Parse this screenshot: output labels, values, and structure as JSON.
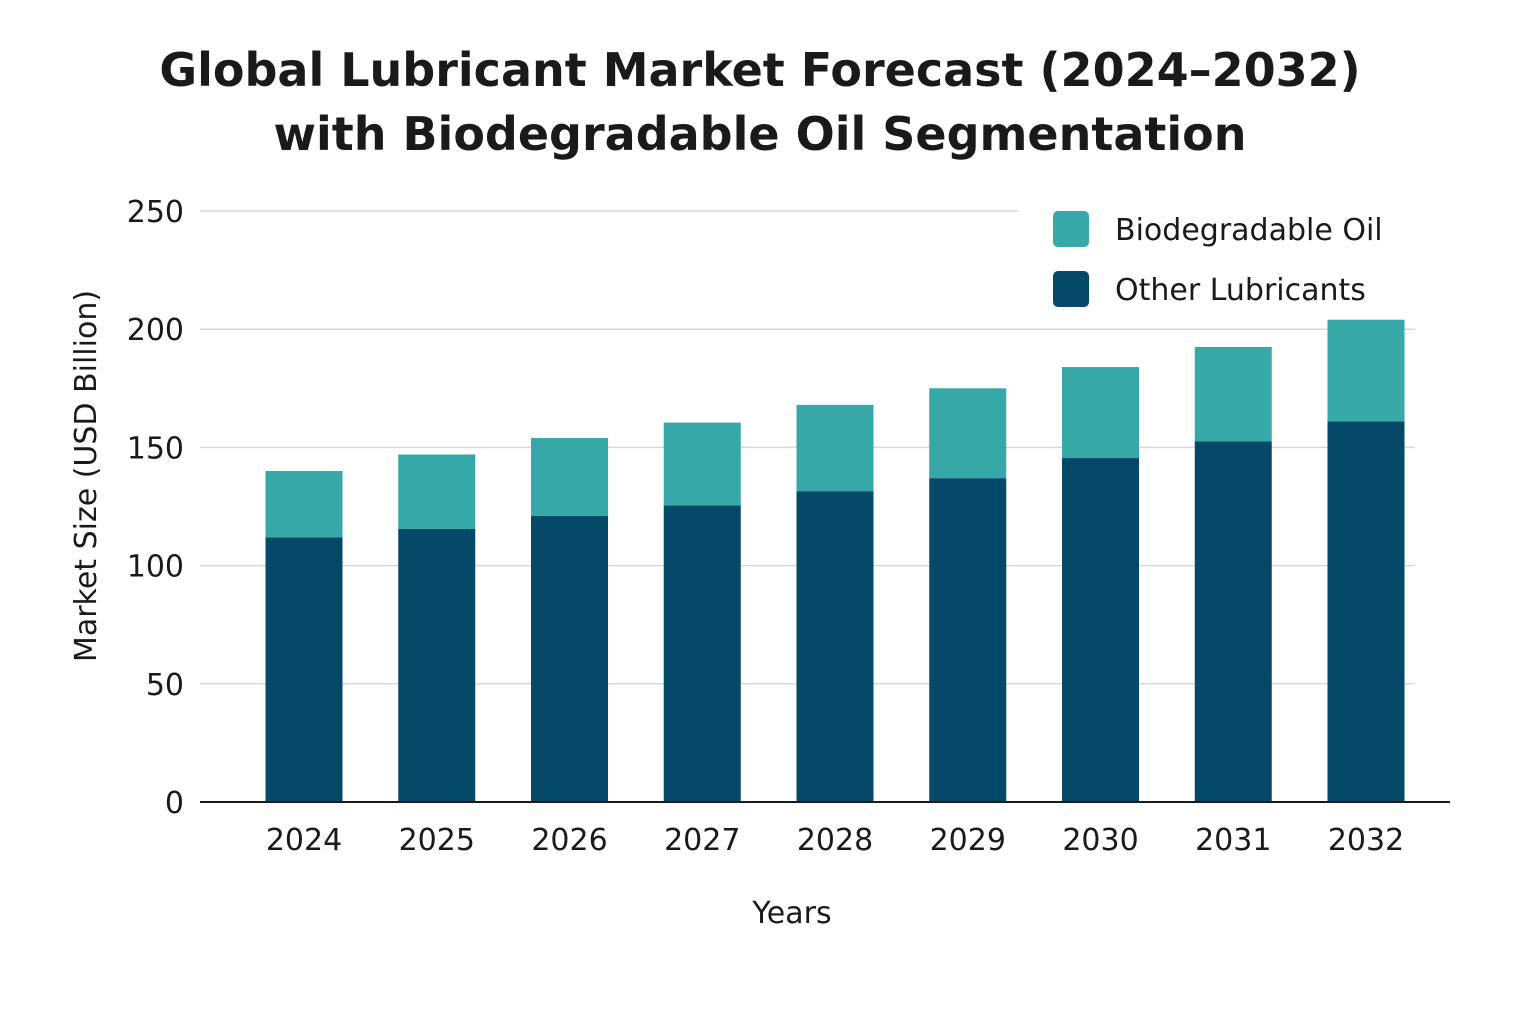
{
  "chart_data": {
    "type": "bar",
    "stacked": true,
    "title": "Global Lubricant Market Forecast (2024–2032)",
    "subtitle": "with Biodegradable Oil Segmentation",
    "xlabel": "Years",
    "ylabel": "Market Size (USD Billion)",
    "ylim": [
      0,
      250
    ],
    "yticks": [
      0,
      50,
      100,
      150,
      200,
      250
    ],
    "grid": true,
    "legend_position": "top-right",
    "categories": [
      "2024",
      "2025",
      "2026",
      "2027",
      "2028",
      "2029",
      "2030",
      "2031",
      "2032"
    ],
    "series": [
      {
        "name": "Other Lubricants",
        "color": "#044a68",
        "values": [
          112,
          115.5,
          121,
          125.5,
          131.5,
          137,
          145.5,
          152.5,
          161
        ]
      },
      {
        "name": "Biodegradable Oil",
        "color": "#36a8a8",
        "values": [
          28,
          31.5,
          33,
          35,
          36.5,
          38,
          38.5,
          40,
          43
        ]
      }
    ]
  }
}
